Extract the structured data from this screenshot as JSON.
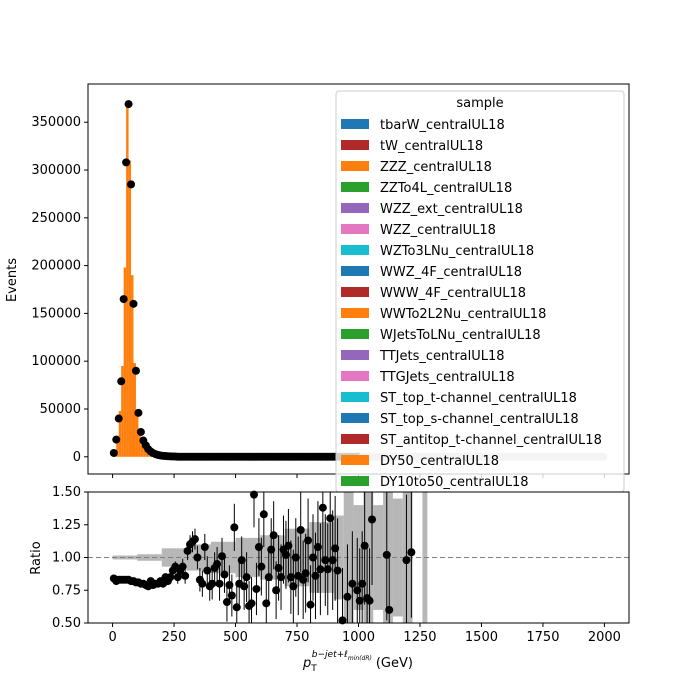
{
  "chart_data": [
    {
      "type": "bar",
      "panel": "main",
      "ylabel": "Events",
      "xlim": [
        -100,
        2100
      ],
      "ylim": [
        -18000,
        390000
      ],
      "yticks": [
        0,
        50000,
        100000,
        150000,
        200000,
        250000,
        300000,
        350000
      ],
      "ytick_labels": [
        "0",
        "50000",
        "100000",
        "150000",
        "200000",
        "250000",
        "300000",
        "350000"
      ],
      "legend": {
        "title": "sample",
        "placement": "top-right",
        "entries": [
          {
            "label": "tbarW_centralUL18",
            "color": "#1f77b4"
          },
          {
            "label": "tW_centralUL18",
            "color": "#b02a2a"
          },
          {
            "label": "ZZZ_centralUL18",
            "color": "#ff7f0e"
          },
          {
            "label": "ZZTo4L_centralUL18",
            "color": "#2ca02c"
          },
          {
            "label": "WZZ_ext_centralUL18",
            "color": "#9467bd"
          },
          {
            "label": "WZZ_centralUL18",
            "color": "#e377c2"
          },
          {
            "label": "WZTo3LNu_centralUL18",
            "color": "#17becf"
          },
          {
            "label": "WWZ_4F_centralUL18",
            "color": "#1f77b4"
          },
          {
            "label": "WWW_4F_centralUL18",
            "color": "#b02a2a"
          },
          {
            "label": "WWTo2L2Nu_centralUL18",
            "color": "#ff7f0e"
          },
          {
            "label": "WJetsToLNu_centralUL18",
            "color": "#2ca02c"
          },
          {
            "label": "TTJets_centralUL18",
            "color": "#9467bd"
          },
          {
            "label": "TTGJets_centralUL18",
            "color": "#e377c2"
          },
          {
            "label": "ST_top_t-channel_centralUL18",
            "color": "#17becf"
          },
          {
            "label": "ST_top_s-channel_centralUL18",
            "color": "#1f77b4"
          },
          {
            "label": "ST_antitop_t-channel_centralUL18",
            "color": "#b02a2a"
          },
          {
            "label": "DY50_centralUL18",
            "color": "#ff7f0e"
          },
          {
            "label": "DY10to50_centralUL18",
            "color": "#2ca02c"
          }
        ]
      },
      "mc_color": "#ff7f0e",
      "mc_bin_width": 10,
      "mc_bins": [
        {
          "x": 10,
          "y": 5000
        },
        {
          "x": 20,
          "y": 22000
        },
        {
          "x": 30,
          "y": 48000
        },
        {
          "x": 40,
          "y": 95000
        },
        {
          "x": 50,
          "y": 198000
        },
        {
          "x": 60,
          "y": 368000
        },
        {
          "x": 70,
          "y": 310000
        },
        {
          "x": 80,
          "y": 190000
        },
        {
          "x": 90,
          "y": 98000
        },
        {
          "x": 100,
          "y": 48000
        },
        {
          "x": 110,
          "y": 25000
        },
        {
          "x": 120,
          "y": 16000
        },
        {
          "x": 130,
          "y": 11000
        },
        {
          "x": 140,
          "y": 7500
        },
        {
          "x": 150,
          "y": 5000
        },
        {
          "x": 160,
          "y": 3500
        },
        {
          "x": 170,
          "y": 2500
        },
        {
          "x": 180,
          "y": 1800
        },
        {
          "x": 190,
          "y": 1200
        },
        {
          "x": 200,
          "y": 800
        },
        {
          "x": 220,
          "y": 500
        },
        {
          "x": 240,
          "y": 300
        },
        {
          "x": 260,
          "y": 200
        }
      ],
      "data_points": [
        {
          "x": 5,
          "y": 4000
        },
        {
          "x": 15,
          "y": 18000
        },
        {
          "x": 25,
          "y": 40000
        },
        {
          "x": 35,
          "y": 79000
        },
        {
          "x": 45,
          "y": 165000
        },
        {
          "x": 55,
          "y": 308000
        },
        {
          "x": 65,
          "y": 369000
        },
        {
          "x": 75,
          "y": 285000
        },
        {
          "x": 85,
          "y": 160000
        },
        {
          "x": 95,
          "y": 90000
        },
        {
          "x": 105,
          "y": 46000
        },
        {
          "x": 115,
          "y": 26000
        },
        {
          "x": 125,
          "y": 17000
        },
        {
          "x": 135,
          "y": 12000
        },
        {
          "x": 145,
          "y": 8000
        },
        {
          "x": 155,
          "y": 5500
        },
        {
          "x": 165,
          "y": 3800
        },
        {
          "x": 175,
          "y": 2700
        },
        {
          "x": 185,
          "y": 1900
        },
        {
          "x": 195,
          "y": 1400
        },
        {
          "x": 205,
          "y": 1000
        },
        {
          "x": 215,
          "y": 800
        },
        {
          "x": 225,
          "y": 600
        },
        {
          "x": 235,
          "y": 450
        },
        {
          "x": 245,
          "y": 350
        },
        {
          "x": 255,
          "y": 280
        }
      ],
      "data_tail": {
        "x_start": 265,
        "x_end": 1995,
        "step": 10,
        "y": 0
      }
    },
    {
      "type": "scatter",
      "panel": "ratio",
      "xlabel_base": "p",
      "xlabel_sub": "T",
      "xlabel_sup": "b−jet+ℓ",
      "xlabel_sup_sub": "min(dR)",
      "xlabel_unit": "(GeV)",
      "ylabel": "Ratio",
      "xlim": [
        -100,
        2100
      ],
      "ylim": [
        0.5,
        1.5
      ],
      "xticks": [
        0,
        250,
        500,
        750,
        1000,
        1250,
        1500,
        1750,
        2000
      ],
      "xtick_labels": [
        "0",
        "250",
        "500",
        "750",
        "1000",
        "1250",
        "1500",
        "1750",
        "2000"
      ],
      "yticks": [
        0.5,
        0.75,
        1.0,
        1.25,
        1.5
      ],
      "ytick_labels": [
        "0.50",
        "0.75",
        "1.00",
        "1.25",
        "1.50"
      ],
      "reference_line": 1.0,
      "band_color": "#aaaaaa",
      "uncertainty_band": [
        {
          "x0": 0,
          "x1": 100,
          "lo": 0.985,
          "hi": 1.015
        },
        {
          "x0": 100,
          "x1": 200,
          "lo": 0.975,
          "hi": 1.025
        },
        {
          "x0": 200,
          "x1": 300,
          "lo": 0.93,
          "hi": 1.07
        },
        {
          "x0": 300,
          "x1": 400,
          "lo": 0.9,
          "hi": 1.1
        },
        {
          "x0": 400,
          "x1": 500,
          "lo": 0.88,
          "hi": 1.12
        },
        {
          "x0": 500,
          "x1": 600,
          "lo": 0.85,
          "hi": 1.15
        },
        {
          "x0": 600,
          "x1": 700,
          "lo": 0.83,
          "hi": 1.17
        },
        {
          "x0": 700,
          "x1": 800,
          "lo": 0.78,
          "hi": 1.22
        },
        {
          "x0": 800,
          "x1": 900,
          "lo": 0.73,
          "hi": 1.27
        },
        {
          "x0": 900,
          "x1": 940,
          "lo": 0.68,
          "hi": 1.32
        },
        {
          "x0": 940,
          "x1": 980,
          "lo": 0.5,
          "hi": 1.5
        },
        {
          "x0": 980,
          "x1": 1020,
          "lo": 0.6,
          "hi": 1.4
        },
        {
          "x0": 1020,
          "x1": 1060,
          "lo": 0.5,
          "hi": 1.5
        },
        {
          "x0": 1060,
          "x1": 1100,
          "lo": 0.6,
          "hi": 1.4
        },
        {
          "x0": 1100,
          "x1": 1140,
          "lo": 0.5,
          "hi": 1.5
        },
        {
          "x0": 1140,
          "x1": 1180,
          "lo": 0.55,
          "hi": 1.45
        },
        {
          "x0": 1180,
          "x1": 1220,
          "lo": 0.5,
          "hi": 1.5
        },
        {
          "x0": 1260,
          "x1": 1280,
          "lo": 0.5,
          "hi": 1.5
        }
      ],
      "points": [
        {
          "x": 5,
          "y": 0.84,
          "err": 0.005
        },
        {
          "x": 15,
          "y": 0.82,
          "err": 0.005
        },
        {
          "x": 25,
          "y": 0.83,
          "err": 0.005
        },
        {
          "x": 35,
          "y": 0.83,
          "err": 0.005
        },
        {
          "x": 45,
          "y": 0.83,
          "err": 0.005
        },
        {
          "x": 55,
          "y": 0.83,
          "err": 0.005
        },
        {
          "x": 65,
          "y": 0.83,
          "err": 0.005
        },
        {
          "x": 75,
          "y": 0.82,
          "err": 0.005
        },
        {
          "x": 85,
          "y": 0.82,
          "err": 0.005
        },
        {
          "x": 95,
          "y": 0.81,
          "err": 0.005
        },
        {
          "x": 105,
          "y": 0.81,
          "err": 0.005
        },
        {
          "x": 115,
          "y": 0.8,
          "err": 0.01
        },
        {
          "x": 125,
          "y": 0.8,
          "err": 0.01
        },
        {
          "x": 135,
          "y": 0.79,
          "err": 0.01
        },
        {
          "x": 145,
          "y": 0.78,
          "err": 0.01
        },
        {
          "x": 155,
          "y": 0.82,
          "err": 0.01
        },
        {
          "x": 165,
          "y": 0.79,
          "err": 0.012
        },
        {
          "x": 175,
          "y": 0.8,
          "err": 0.015
        },
        {
          "x": 185,
          "y": 0.8,
          "err": 0.015
        },
        {
          "x": 195,
          "y": 0.82,
          "err": 0.02
        },
        {
          "x": 205,
          "y": 0.8,
          "err": 0.02
        },
        {
          "x": 215,
          "y": 0.85,
          "err": 0.025
        },
        {
          "x": 225,
          "y": 0.82,
          "err": 0.03
        },
        {
          "x": 235,
          "y": 0.85,
          "err": 0.03
        },
        {
          "x": 245,
          "y": 0.9,
          "err": 0.04
        },
        {
          "x": 255,
          "y": 0.93,
          "err": 0.04
        },
        {
          "x": 265,
          "y": 0.85,
          "err": 0.05
        },
        {
          "x": 275,
          "y": 0.9,
          "err": 0.05
        },
        {
          "x": 285,
          "y": 0.93,
          "err": 0.06
        },
        {
          "x": 295,
          "y": 0.86,
          "err": 0.06
        },
        {
          "x": 305,
          "y": 1.05,
          "err": 0.07
        },
        {
          "x": 315,
          "y": 1.1,
          "err": 0.07
        },
        {
          "x": 325,
          "y": 1.12,
          "err": 0.08
        },
        {
          "x": 335,
          "y": 1.14,
          "err": 0.08
        },
        {
          "x": 345,
          "y": 1.0,
          "err": 0.09
        },
        {
          "x": 355,
          "y": 0.83,
          "err": 0.09
        },
        {
          "x": 365,
          "y": 0.8,
          "err": 0.1
        },
        {
          "x": 375,
          "y": 1.08,
          "err": 0.1
        },
        {
          "x": 385,
          "y": 0.9,
          "err": 0.11
        },
        {
          "x": 395,
          "y": 0.78,
          "err": 0.11
        },
        {
          "x": 405,
          "y": 0.8,
          "err": 0.12
        },
        {
          "x": 415,
          "y": 0.92,
          "err": 0.12
        },
        {
          "x": 425,
          "y": 0.95,
          "err": 0.13
        },
        {
          "x": 435,
          "y": 0.8,
          "err": 0.13
        },
        {
          "x": 445,
          "y": 1.01,
          "err": 0.14
        },
        {
          "x": 455,
          "y": 0.87,
          "err": 0.14
        },
        {
          "x": 465,
          "y": 0.66,
          "err": 0.15
        },
        {
          "x": 475,
          "y": 0.79,
          "err": 0.15
        },
        {
          "x": 485,
          "y": 0.71,
          "err": 0.16
        },
        {
          "x": 495,
          "y": 1.23,
          "err": 0.18
        },
        {
          "x": 505,
          "y": 0.62,
          "err": 0.17
        },
        {
          "x": 515,
          "y": 0.8,
          "err": 0.17
        },
        {
          "x": 525,
          "y": 0.98,
          "err": 0.18
        },
        {
          "x": 535,
          "y": 0.78,
          "err": 0.18
        },
        {
          "x": 545,
          "y": 0.85,
          "err": 0.19
        },
        {
          "x": 555,
          "y": 0.63,
          "err": 0.19
        },
        {
          "x": 565,
          "y": 0.65,
          "err": 0.2
        },
        {
          "x": 575,
          "y": 1.48,
          "err": 0.25
        },
        {
          "x": 585,
          "y": 0.76,
          "err": 0.2
        },
        {
          "x": 595,
          "y": 1.08,
          "err": 0.22
        },
        {
          "x": 605,
          "y": 0.93,
          "err": 0.22
        },
        {
          "x": 615,
          "y": 1.33,
          "err": 0.25
        },
        {
          "x": 625,
          "y": 0.65,
          "err": 0.2
        },
        {
          "x": 635,
          "y": 0.85,
          "err": 0.22
        },
        {
          "x": 645,
          "y": 1.06,
          "err": 0.24
        },
        {
          "x": 655,
          "y": 1.17,
          "err": 0.26
        },
        {
          "x": 665,
          "y": 0.75,
          "err": 0.22
        },
        {
          "x": 675,
          "y": 0.92,
          "err": 0.25
        },
        {
          "x": 685,
          "y": 0.85,
          "err": 0.25
        },
        {
          "x": 695,
          "y": 1.06,
          "err": 0.26
        },
        {
          "x": 705,
          "y": 1.02,
          "err": 0.26
        },
        {
          "x": 715,
          "y": 1.09,
          "err": 0.28
        },
        {
          "x": 725,
          "y": 0.85,
          "err": 0.28
        },
        {
          "x": 735,
          "y": 0.78,
          "err": 0.28
        },
        {
          "x": 745,
          "y": 1.0,
          "err": 0.3
        },
        {
          "x": 755,
          "y": 0.86,
          "err": 0.3
        },
        {
          "x": 765,
          "y": 1.21,
          "err": 0.32
        },
        {
          "x": 775,
          "y": 0.83,
          "err": 0.3
        },
        {
          "x": 785,
          "y": 0.88,
          "err": 0.3
        },
        {
          "x": 795,
          "y": 1.13,
          "err": 0.32
        },
        {
          "x": 805,
          "y": 0.64,
          "err": 0.3
        },
        {
          "x": 815,
          "y": 1.0,
          "err": 0.33
        },
        {
          "x": 825,
          "y": 0.86,
          "err": 0.33
        },
        {
          "x": 835,
          "y": 1.08,
          "err": 0.35
        },
        {
          "x": 845,
          "y": 0.91,
          "err": 0.35
        },
        {
          "x": 855,
          "y": 1.38,
          "err": 0.4
        },
        {
          "x": 865,
          "y": 0.98,
          "err": 0.35
        },
        {
          "x": 875,
          "y": 0.91,
          "err": 0.35
        },
        {
          "x": 885,
          "y": 1.3,
          "err": 0.4
        },
        {
          "x": 895,
          "y": 0.98,
          "err": 0.38
        },
        {
          "x": 905,
          "y": 1.07,
          "err": 0.4
        },
        {
          "x": 915,
          "y": 0.9,
          "err": 0.4
        },
        {
          "x": 935,
          "y": 0.52,
          "err": 0.4
        },
        {
          "x": 955,
          "y": 0.7,
          "err": 0.4
        },
        {
          "x": 975,
          "y": 0.8,
          "err": 0.4
        },
        {
          "x": 995,
          "y": 0.75,
          "err": 0.4
        },
        {
          "x": 1005,
          "y": 0.67,
          "err": 0.4
        },
        {
          "x": 1015,
          "y": 0.8,
          "err": 0.4
        },
        {
          "x": 1025,
          "y": 1.09,
          "err": 0.45
        },
        {
          "x": 1035,
          "y": 0.69,
          "err": 0.4
        },
        {
          "x": 1045,
          "y": 0.67,
          "err": 0.4
        },
        {
          "x": 1055,
          "y": 1.29,
          "err": 0.5
        },
        {
          "x": 1115,
          "y": 1.02,
          "err": 0.5
        },
        {
          "x": 1125,
          "y": 0.6,
          "err": 0.4
        },
        {
          "x": 1195,
          "y": 0.98,
          "err": 0.5
        },
        {
          "x": 1215,
          "y": 1.04,
          "err": 0.5
        }
      ]
    }
  ]
}
